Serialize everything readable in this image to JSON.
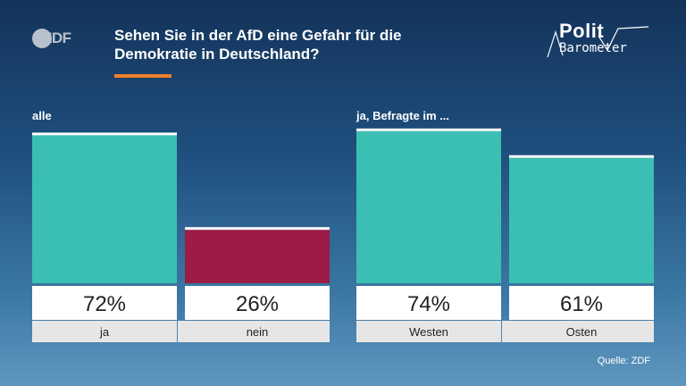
{
  "header": {
    "title_line1": "Sehen Sie in der AfD eine Gefahr für die",
    "title_line2": "Demokratie in Deutschland?",
    "zdf_logo": "ZDF",
    "polit_logo_line1": "Polit",
    "polit_logo_line2": "Barometer"
  },
  "colors": {
    "accent": "#f07e2a",
    "teal": "#3bbfb2",
    "crimson": "#9c1b47",
    "label_bg": "#e6e6e6"
  },
  "chart_data": {
    "type": "bar",
    "groups": [
      "alle",
      "ja, Befragte im ..."
    ],
    "categories": [
      "ja",
      "nein",
      "Westen",
      "Osten"
    ],
    "values": [
      72,
      26,
      74,
      61
    ],
    "value_labels": [
      "72%",
      "26%",
      "74%",
      "61%"
    ],
    "unit": "%",
    "ylim": [
      0,
      80
    ]
  },
  "footer": {
    "source": "Quelle: ZDF"
  }
}
